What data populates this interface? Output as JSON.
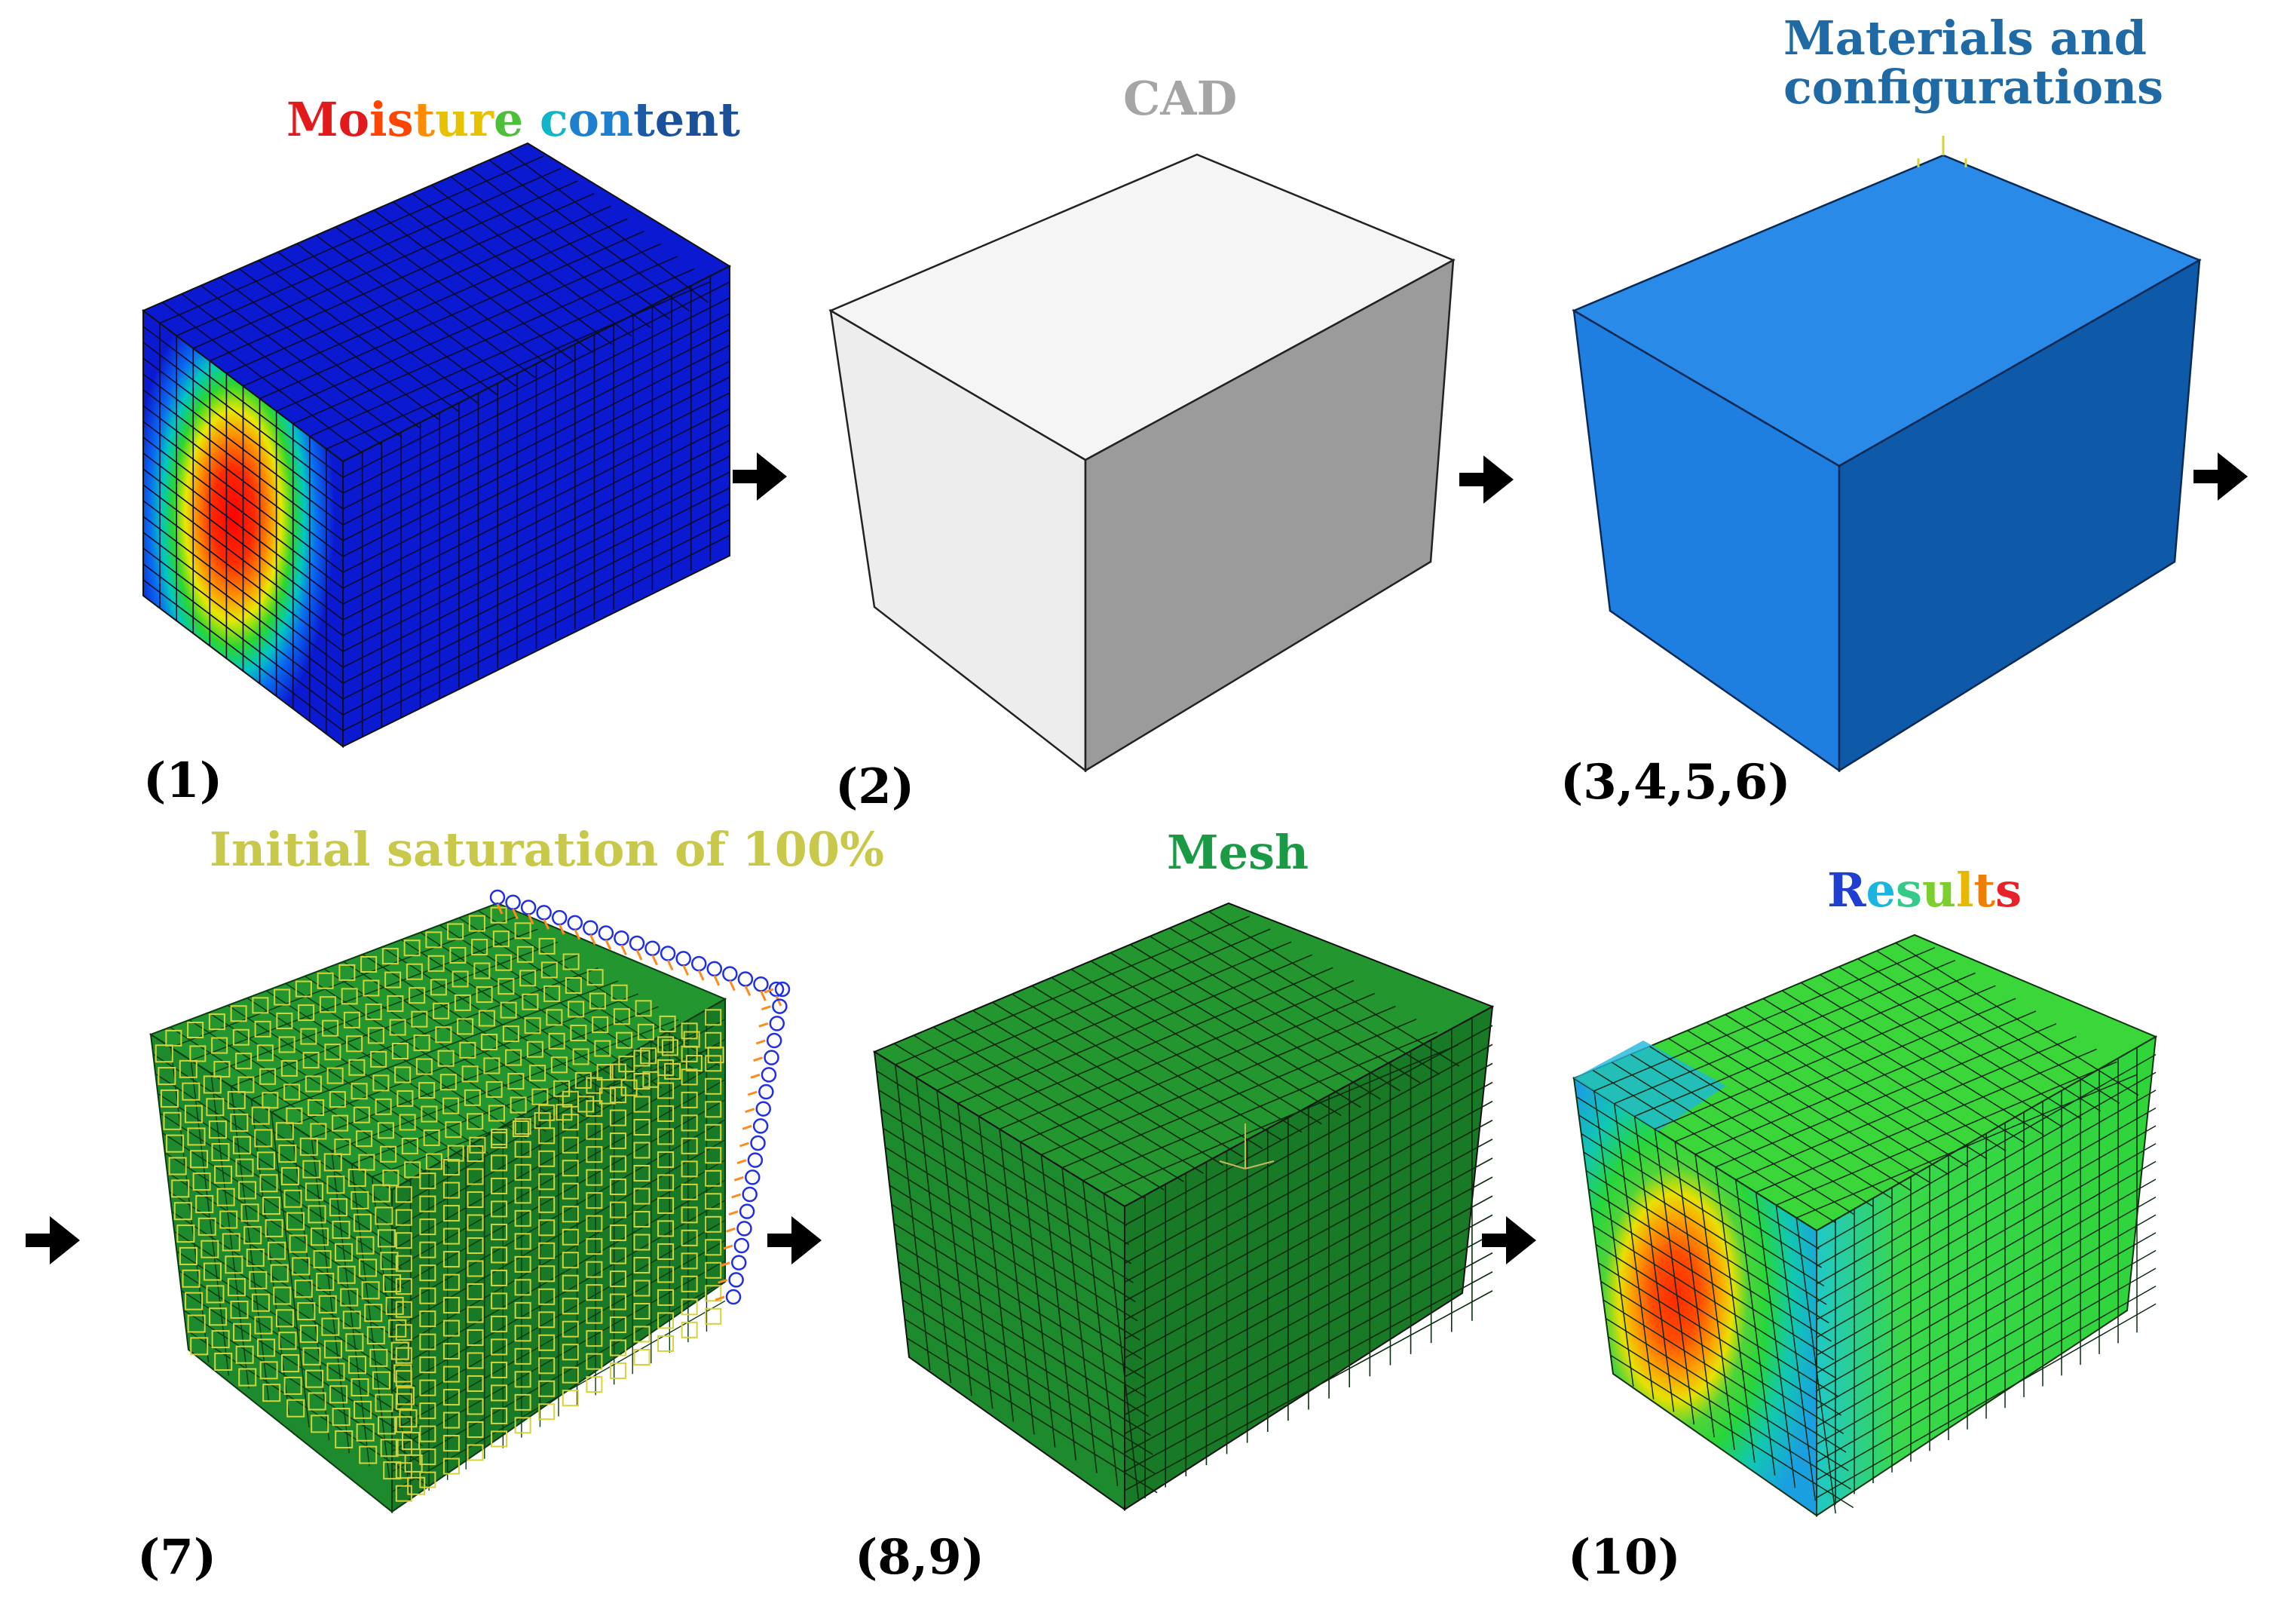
{
  "titles": {
    "moisture": {
      "text": "Moisture content",
      "gradient": [
        "#e31a1c",
        "#ff4500",
        "#ff8c00",
        "#e6c200",
        "#4dbf3a",
        "#10b5c7",
        "#1f7fcf",
        "#1c5aa6",
        "#1a4f9a",
        "#1a4f9a"
      ]
    },
    "cad": "CAD",
    "materials_line1": "Materials and",
    "materials_line2": "configurations",
    "initial": "Initial saturation of 100%",
    "mesh": "Mesh",
    "results": {
      "text": "Results",
      "gradient": [
        "#1e3fd1",
        "#19b5e0",
        "#35c98a",
        "#7ccf2e",
        "#e8b800",
        "#f07f00",
        "#e8202a"
      ]
    }
  },
  "step_labels": [
    "(1)",
    "(2)",
    "(3,4,5,6)",
    "(7)",
    "(8,9)",
    "(10)"
  ],
  "colors": {
    "moisture_block": "#0b1ad0",
    "cad_front": "#ededed",
    "cad_top": "#f5f5f5",
    "cad_side": "#9b9b9b",
    "materials_front": "#1e7fe0",
    "materials_top": "#2a8ae8",
    "materials_side": "#0e5aa8",
    "green_front": "#1e8a2e",
    "green_top": "#23962f",
    "green_side": "#187a26",
    "bc_yellow": "#d4d43a",
    "bc_blue": "#2030e0",
    "bc_orange": "#ff8a1e",
    "arrow": "#000000"
  },
  "icons": [
    "arrow-right-icon",
    "axis-triad-icon"
  ]
}
